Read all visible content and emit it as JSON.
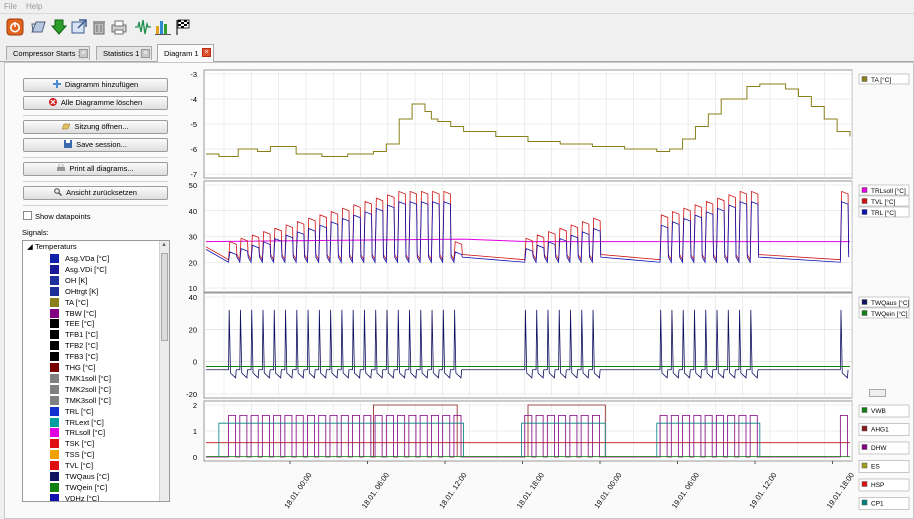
{
  "menu": {
    "file": "File",
    "help": "Help"
  },
  "toolbar": {
    "icons": [
      "power-icon",
      "open-icon",
      "download-icon",
      "import-icon",
      "delete-icon",
      "print-icon",
      "waveform-icon",
      "bar-chart-icon",
      "finish-flag-icon"
    ]
  },
  "tabs": [
    {
      "label": "Compressor Starts 1",
      "active": false
    },
    {
      "label": "Statistics 1",
      "active": false
    },
    {
      "label": "Diagram 1",
      "active": true
    }
  ],
  "left": {
    "buttons": {
      "add_diagram": "Diagramm hinzufügen",
      "delete_all": "Alle Diagramme löschen",
      "open_session": "Sitzung öffnen...",
      "save_session": "Save session...",
      "print_all": "Print all diagrams...",
      "reset_view": "Ansicht zurücksetzen"
    },
    "show_datapoints": "Show datapoints",
    "signals_label": "Signals:",
    "tree_root": "Temperaturs",
    "signals": [
      {
        "name": "Asg.VDa [°C]",
        "color": "#1020a8"
      },
      {
        "name": "Asg.VDi [°C]",
        "color": "#1a1a96"
      },
      {
        "name": "OH [K]",
        "color": "#1f2fa0"
      },
      {
        "name": "OHtrgt [K]",
        "color": "#1f2f9a"
      },
      {
        "name": "TA [°C]",
        "color": "#8a7f1a"
      },
      {
        "name": "TBW [°C]",
        "color": "#800080"
      },
      {
        "name": "TEE [°C]",
        "color": "#000000"
      },
      {
        "name": "TFB1 [°C]",
        "color": "#000000"
      },
      {
        "name": "TFB2 [°C]",
        "color": "#000000"
      },
      {
        "name": "TFB3 [°C]",
        "color": "#000000"
      },
      {
        "name": "THG [°C]",
        "color": "#7a0000"
      },
      {
        "name": "TMK1soll [°C]",
        "color": "#808080"
      },
      {
        "name": "TMK2soll [°C]",
        "color": "#808080"
      },
      {
        "name": "TMK3soll [°C]",
        "color": "#808080"
      },
      {
        "name": "TRL [°C]",
        "color": "#1030d0"
      },
      {
        "name": "TRLext [°C]",
        "color": "#00a0a0"
      },
      {
        "name": "TRLsoll [°C]",
        "color": "#e000e0"
      },
      {
        "name": "TSK [°C]",
        "color": "#e01010"
      },
      {
        "name": "TSS [°C]",
        "color": "#f0a000"
      },
      {
        "name": "TVL [°C]",
        "color": "#e01010"
      },
      {
        "name": "TWQaus [°C]",
        "color": "#101060"
      },
      {
        "name": "TWQein [°C]",
        "color": "#108010"
      },
      {
        "name": "VDHz [°C]",
        "color": "#1010b0"
      }
    ]
  },
  "chart_data": [
    {
      "type": "line",
      "ylim": [
        -7,
        -3
      ],
      "yticks": [
        "-3",
        "-4",
        "-5",
        "-6",
        "-7"
      ],
      "legend_placement": "right",
      "series": [
        {
          "name": "TA [°C]",
          "color": "#8a7f1a",
          "x": [
            0,
            0.02,
            0.05,
            0.08,
            0.1,
            0.14,
            0.18,
            0.22,
            0.26,
            0.28,
            0.3,
            0.3,
            0.32,
            0.34,
            0.35,
            0.36,
            0.38,
            0.4,
            0.45,
            0.5,
            0.55,
            0.6,
            0.65,
            0.7,
            0.72,
            0.74,
            0.76,
            0.78,
            0.8,
            0.84,
            0.86,
            0.9,
            0.92,
            0.94,
            0.96,
            0.98,
            1.0
          ],
          "y": [
            -6.2,
            -6.3,
            -6.0,
            -6.1,
            -5.9,
            -6.2,
            -6.3,
            -6.2,
            -6.1,
            -5.8,
            -5.6,
            -4.8,
            -4.2,
            -4.5,
            -4.8,
            -4.9,
            -5.1,
            -5.3,
            -5.5,
            -5.7,
            -5.8,
            -5.9,
            -6.0,
            -6.1,
            -6.0,
            -5.6,
            -5.1,
            -4.6,
            -4.0,
            -3.5,
            -3.4,
            -3.6,
            -3.9,
            -4.3,
            -4.8,
            -5.3,
            -5.5
          ]
        }
      ]
    },
    {
      "type": "line",
      "ylim": [
        10,
        50
      ],
      "yticks": [
        "50",
        "40",
        "30",
        "20",
        "10"
      ],
      "legend_placement": "right",
      "series": [
        {
          "name": "TRLsoll [°C]",
          "color": "#e000e0"
        },
        {
          "name": "TVL [°C]",
          "color": "#d01010"
        },
        {
          "name": "TRL [°C]",
          "color": "#1010b0"
        }
      ]
    },
    {
      "type": "line",
      "ylim": [
        -20,
        40
      ],
      "yticks": [
        "40",
        "20",
        "0",
        "-20"
      ],
      "legend_placement": "right",
      "series": [
        {
          "name": "TWQaus [°C]",
          "color": "#101060"
        },
        {
          "name": "TWQein [°C]",
          "color": "#108010"
        }
      ]
    },
    {
      "type": "line",
      "ylim": [
        0,
        2
      ],
      "yticks": [
        "2",
        "1",
        "0"
      ],
      "legend_placement": "right",
      "series": [
        {
          "name": "VWB",
          "color": "#108010"
        },
        {
          "name": "AHG1",
          "color": "#8b1a1a"
        },
        {
          "name": "DHW",
          "color": "#800080"
        },
        {
          "name": "ES",
          "color": "#a0a020"
        },
        {
          "name": "HSP",
          "color": "#e01010"
        },
        {
          "name": "CP1",
          "color": "#008080"
        }
      ],
      "xticks": [
        "18.01. 00:00",
        "18.01. 06:00",
        "18.01. 12:00",
        "18.01. 18:00",
        "19.01. 00:00",
        "19.01. 06:00",
        "19.01. 12:00",
        "19.01. 18:00"
      ]
    }
  ]
}
